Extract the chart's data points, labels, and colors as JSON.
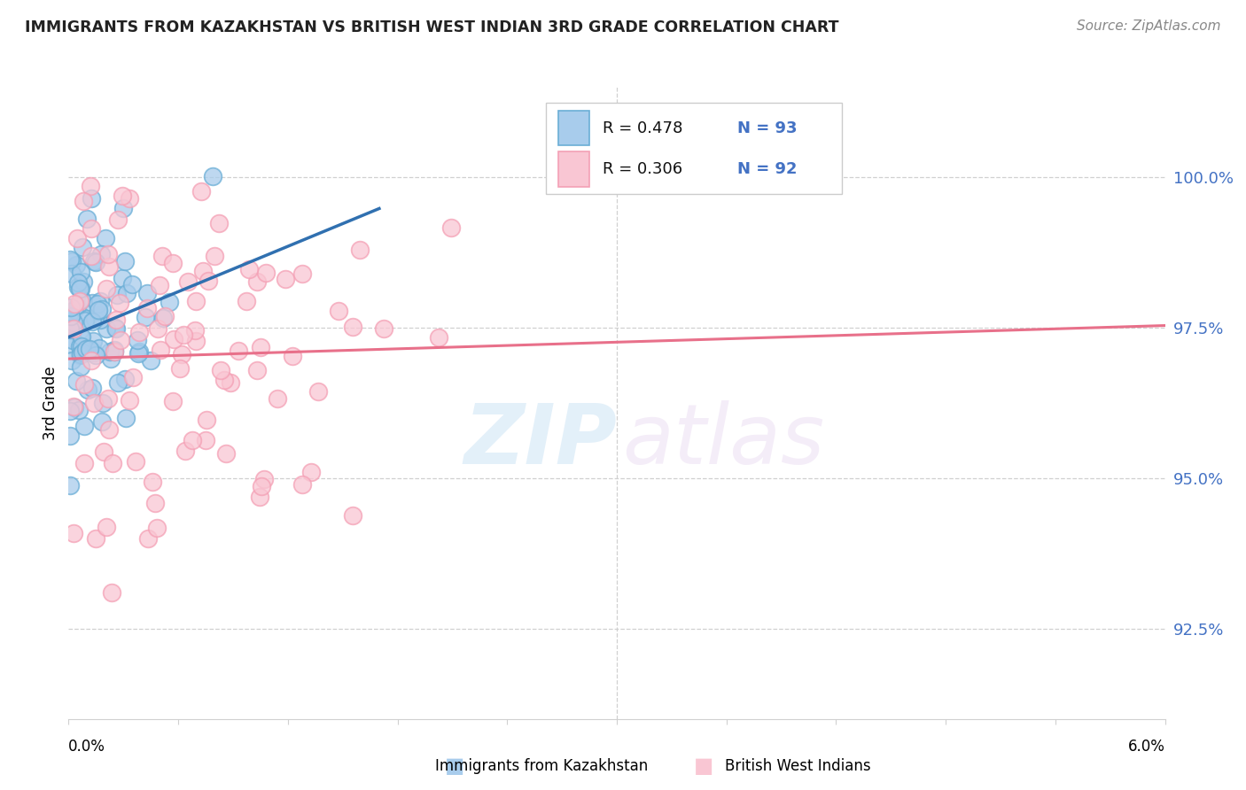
{
  "title": "IMMIGRANTS FROM KAZAKHSTAN VS BRITISH WEST INDIAN 3RD GRADE CORRELATION CHART",
  "source": "Source: ZipAtlas.com",
  "ylabel": "3rd Grade",
  "x_range": [
    0.0,
    6.0
  ],
  "y_range": [
    91.0,
    101.5
  ],
  "y_ticks": [
    92.5,
    95.0,
    97.5,
    100.0
  ],
  "legend_r1": "R = 0.478",
  "legend_n1": "N = 93",
  "legend_r2": "R = 0.306",
  "legend_n2": "N = 92",
  "color_blue_fill": "#a8ccec",
  "color_blue_edge": "#6aaed6",
  "color_pink_fill": "#f9c6d3",
  "color_pink_edge": "#f4a0b5",
  "color_line_blue": "#3070b0",
  "color_line_pink": "#e8708a",
  "color_right_axis": "#4472c4",
  "watermark_zip": "ZIP",
  "watermark_atlas": "atlas",
  "legend_label_blue": "Immigrants from Kazakhstan",
  "legend_label_pink": "British West Indians",
  "bg_color": "#ffffff",
  "grid_color": "#d0d0d0",
  "title_color": "#222222",
  "source_color": "#888888"
}
